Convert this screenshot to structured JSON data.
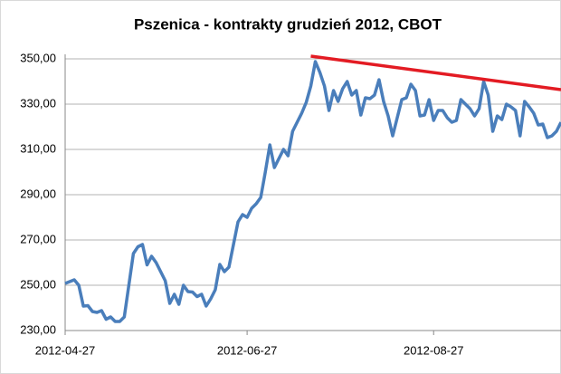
{
  "chart_data": {
    "type": "line",
    "title": "Pszenica - kontrakty grudzień 2012, CBOT",
    "categories": [
      "2012-04-27",
      null,
      null,
      null,
      null,
      null,
      null,
      null,
      null,
      null,
      null,
      null,
      null,
      null,
      null,
      null,
      null,
      null,
      null,
      null,
      null,
      null,
      null,
      null,
      null,
      null,
      null,
      null,
      null,
      null,
      null,
      null,
      null,
      null,
      null,
      null,
      null,
      null,
      null,
      null,
      "2012-06-27",
      null,
      null,
      null,
      null,
      null,
      null,
      null,
      null,
      null,
      null,
      null,
      null,
      null,
      null,
      null,
      null,
      null,
      null,
      null,
      null,
      null,
      null,
      null,
      null,
      null,
      null,
      null,
      null,
      null,
      null,
      null,
      null,
      null,
      null,
      null,
      null,
      null,
      null,
      null,
      null,
      "2012-08-27",
      null,
      null,
      null,
      null,
      null,
      null,
      null,
      null,
      null,
      null,
      null,
      null,
      null,
      null,
      null,
      null,
      null,
      null,
      null,
      null,
      null,
      null,
      null,
      null,
      null,
      null,
      null,
      null
    ],
    "series": [
      {
        "color": "#4a7ebb",
        "values": [
          250.8,
          251.6,
          252.4,
          250,
          240.8,
          241,
          238.4,
          238,
          238.8,
          235,
          236,
          234,
          234,
          236,
          250,
          264,
          267,
          268,
          259,
          262.8,
          260,
          256,
          252,
          242,
          246,
          241.6,
          250,
          247.2,
          247,
          245,
          246,
          240.8,
          244,
          248,
          259.2,
          256,
          258,
          268,
          278,
          281.2,
          280,
          284,
          286,
          288.8,
          300,
          312,
          302,
          306,
          310,
          307.2,
          318,
          322,
          326,
          330.8,
          338,
          348.8,
          344,
          338,
          327.2,
          336,
          331.2,
          336.8,
          340,
          334,
          336,
          325.2,
          332.8,
          332.4,
          334,
          340.8,
          331.2,
          324.8,
          316,
          324,
          332,
          332.8,
          338.8,
          336,
          324.8,
          325.2,
          332,
          322.8,
          327.2,
          327.2,
          324,
          322,
          322.8,
          332,
          330,
          328,
          324.8,
          328,
          340,
          334,
          318,
          324.8,
          323.2,
          330,
          328.8,
          327.2,
          316,
          331.2,
          328.8,
          326,
          320.8,
          321.2,
          315.2,
          316,
          318,
          322
        ]
      }
    ],
    "trend_line": {
      "color": "#e31b23",
      "x": [
        54,
        109
      ],
      "values": [
        351.2,
        336.4
      ]
    },
    "ylim": [
      230,
      350
    ],
    "yticks": [
      {
        "value": 230,
        "label": "230,00"
      },
      {
        "value": 250,
        "label": "250,00"
      },
      {
        "value": 270,
        "label": "270,00"
      },
      {
        "value": 290,
        "label": "290,00"
      },
      {
        "value": 310,
        "label": "310,00"
      },
      {
        "value": 330,
        "label": "330,00"
      },
      {
        "value": 350,
        "label": "350,00"
      }
    ],
    "grid": true
  }
}
